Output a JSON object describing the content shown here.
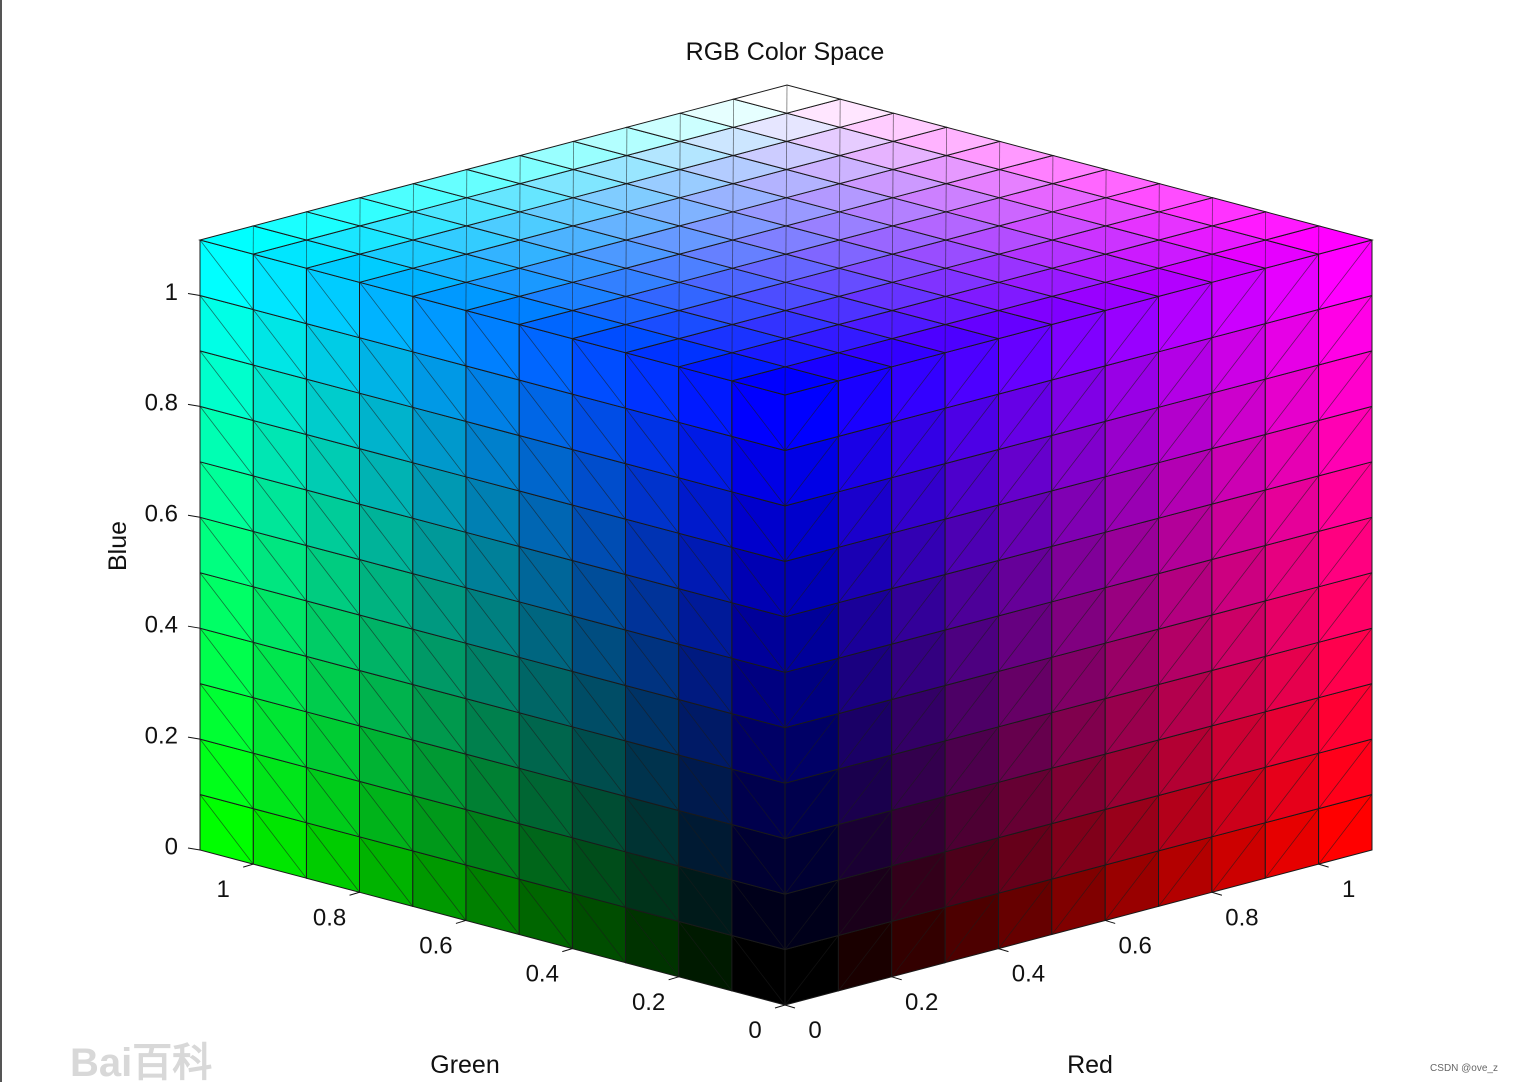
{
  "chart_data": {
    "type": "cube3d",
    "title": "RGB Color Space",
    "xlabel": "Red",
    "ylabel": "Green",
    "zlabel": "Blue",
    "xlim": [
      0,
      1.1
    ],
    "ylim": [
      0,
      1.1
    ],
    "zlim": [
      0,
      1.1
    ],
    "xticks": [
      0,
      0.2,
      0.4,
      0.6,
      0.8,
      1
    ],
    "yticks": [
      0,
      0.2,
      0.4,
      0.6,
      0.8,
      1
    ],
    "zticks": [
      0,
      0.2,
      0.4,
      0.6,
      0.8,
      1
    ]
  },
  "watermarks": [
    "Bai百科",
    "CSDN @ove_z"
  ]
}
